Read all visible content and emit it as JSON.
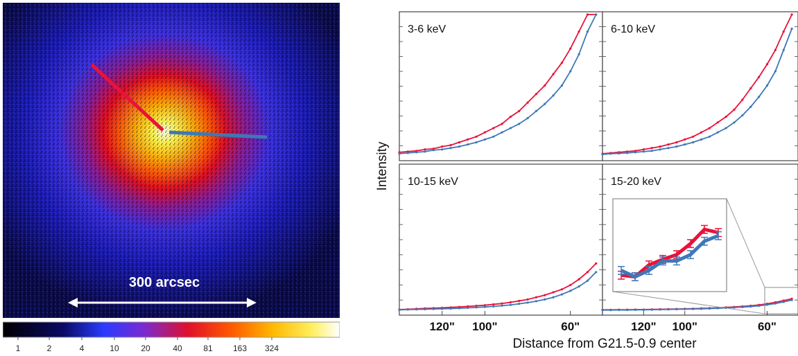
{
  "image_panel": {
    "scale_label": "300 arcsec",
    "colorbar_ticks": [
      "1",
      "2",
      "4",
      "10",
      "20",
      "40",
      "81",
      "163",
      "324"
    ],
    "colors": {
      "red_profile": "#e8123a",
      "blue_profile": "#3d78b8",
      "background": "#0a0a44"
    }
  },
  "chart_data": {
    "type": "line",
    "ylabel": "Intensity",
    "xlabel": "Distance from G21.5-0.9 center",
    "x_tick_labels": [
      "120\"",
      "100\"",
      "60\""
    ],
    "x_tick_values": [
      120,
      100,
      60
    ],
    "xlim": [
      140,
      45
    ],
    "ylim": [
      0,
      1
    ],
    "panels": [
      {
        "title": "3-6 keV",
        "series": [
          {
            "color": "#e8123a",
            "x": [
              140,
              136,
              132,
              128,
              124,
              120,
              116,
              112,
              108,
              104,
              100,
              96,
              92,
              88,
              84,
              80,
              76,
              72,
              68,
              64,
              60,
              56,
              52,
              48
            ],
            "y": [
              0.03,
              0.035,
              0.04,
              0.05,
              0.055,
              0.07,
              0.08,
              0.1,
              0.12,
              0.14,
              0.17,
              0.2,
              0.23,
              0.28,
              0.32,
              0.38,
              0.44,
              0.5,
              0.58,
              0.66,
              0.76,
              0.88,
              1.0,
              1.0
            ]
          },
          {
            "color": "#3d78b8",
            "x": [
              140,
              136,
              132,
              128,
              124,
              120,
              116,
              112,
              108,
              104,
              100,
              96,
              92,
              88,
              84,
              80,
              76,
              72,
              68,
              64,
              60,
              56,
              52,
              48
            ],
            "y": [
              0.02,
              0.025,
              0.03,
              0.035,
              0.045,
              0.05,
              0.06,
              0.07,
              0.085,
              0.1,
              0.12,
              0.14,
              0.17,
              0.2,
              0.23,
              0.27,
              0.32,
              0.37,
              0.43,
              0.5,
              0.6,
              0.72,
              0.88,
              1.0
            ]
          }
        ]
      },
      {
        "title": "6-10 keV",
        "series": [
          {
            "color": "#e8123a",
            "x": [
              140,
              136,
              132,
              128,
              124,
              120,
              116,
              112,
              108,
              104,
              100,
              96,
              92,
              88,
              84,
              80,
              76,
              72,
              68,
              64,
              60,
              56,
              52,
              48
            ],
            "y": [
              0.02,
              0.025,
              0.03,
              0.035,
              0.04,
              0.05,
              0.06,
              0.07,
              0.085,
              0.1,
              0.12,
              0.14,
              0.17,
              0.2,
              0.24,
              0.28,
              0.33,
              0.4,
              0.48,
              0.56,
              0.65,
              0.75,
              0.88,
              1.0
            ]
          },
          {
            "color": "#3d78b8",
            "x": [
              140,
              136,
              132,
              128,
              124,
              120,
              116,
              112,
              108,
              104,
              100,
              96,
              92,
              88,
              84,
              80,
              76,
              72,
              68,
              64,
              60,
              56,
              52,
              48
            ],
            "y": [
              0.015,
              0.02,
              0.022,
              0.025,
              0.03,
              0.035,
              0.04,
              0.05,
              0.06,
              0.07,
              0.085,
              0.1,
              0.12,
              0.14,
              0.17,
              0.2,
              0.24,
              0.29,
              0.35,
              0.42,
              0.5,
              0.6,
              0.75,
              0.9
            ]
          }
        ]
      },
      {
        "title": "10-15 keV",
        "series": [
          {
            "color": "#e8123a",
            "x": [
              140,
              136,
              132,
              128,
              124,
              120,
              116,
              112,
              108,
              104,
              100,
              96,
              92,
              88,
              84,
              80,
              76,
              72,
              68,
              64,
              60,
              56,
              52,
              48
            ],
            "y": [
              0.01,
              0.012,
              0.015,
              0.018,
              0.02,
              0.022,
              0.025,
              0.028,
              0.032,
              0.036,
              0.04,
              0.046,
              0.052,
              0.06,
              0.07,
              0.08,
              0.095,
              0.11,
              0.13,
              0.15,
              0.18,
              0.22,
              0.27,
              0.33
            ]
          },
          {
            "color": "#3d78b8",
            "x": [
              140,
              136,
              132,
              128,
              124,
              120,
              116,
              112,
              108,
              104,
              100,
              96,
              92,
              88,
              84,
              80,
              76,
              72,
              68,
              64,
              60,
              56,
              52,
              48
            ],
            "y": [
              0.008,
              0.01,
              0.011,
              0.012,
              0.014,
              0.015,
              0.017,
              0.019,
              0.022,
              0.025,
              0.028,
              0.032,
              0.037,
              0.042,
              0.05,
              0.058,
              0.068,
              0.08,
              0.095,
              0.115,
              0.14,
              0.17,
              0.21,
              0.27
            ]
          }
        ]
      },
      {
        "title": "15-20 keV",
        "series": [
          {
            "color": "#e8123a",
            "x": [
              140,
              136,
              132,
              128,
              124,
              120,
              116,
              112,
              108,
              104,
              100,
              96,
              92,
              88,
              84,
              80,
              76,
              72,
              68,
              64,
              60,
              56,
              52,
              48
            ],
            "y": [
              0.008,
              0.008,
              0.009,
              0.009,
              0.01,
              0.01,
              0.011,
              0.012,
              0.013,
              0.014,
              0.015,
              0.016,
              0.018,
              0.02,
              0.022,
              0.025,
              0.028,
              0.032,
              0.036,
              0.042,
              0.05,
              0.06,
              0.072,
              0.085
            ]
          },
          {
            "color": "#3d78b8",
            "x": [
              140,
              136,
              132,
              128,
              124,
              120,
              116,
              112,
              108,
              104,
              100,
              96,
              92,
              88,
              84,
              80,
              76,
              72,
              68,
              64,
              60,
              56,
              52,
              48
            ],
            "y": [
              0.006,
              0.006,
              0.007,
              0.007,
              0.008,
              0.008,
              0.009,
              0.01,
              0.011,
              0.012,
              0.013,
              0.014,
              0.015,
              0.017,
              0.019,
              0.021,
              0.024,
              0.027,
              0.031,
              0.036,
              0.043,
              0.052,
              0.063,
              0.076
            ]
          }
        ],
        "inset": {
          "x": [
            1,
            2,
            3,
            4,
            5,
            6,
            7,
            8
          ],
          "red": [
            0.12,
            0.1,
            0.25,
            0.32,
            0.38,
            0.52,
            0.7,
            0.66
          ],
          "blue": [
            0.18,
            0.1,
            0.18,
            0.3,
            0.3,
            0.38,
            0.55,
            0.62
          ],
          "error": 0.05
        }
      }
    ]
  }
}
